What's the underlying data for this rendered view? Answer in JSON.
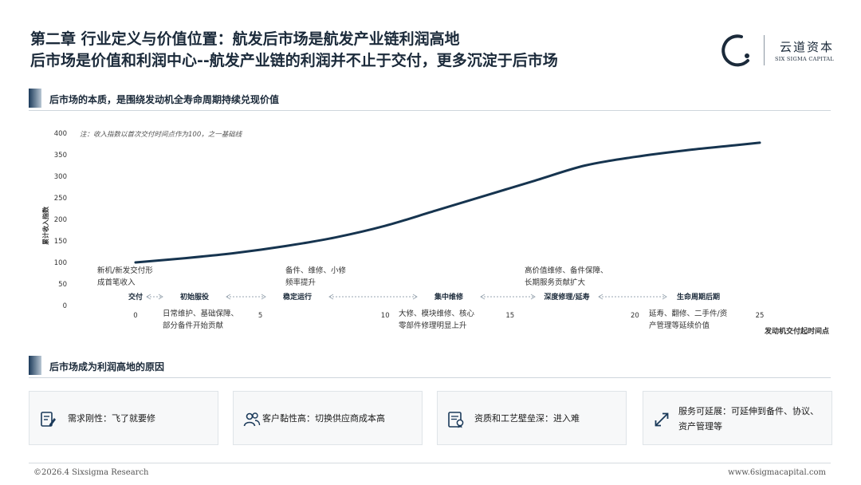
{
  "header": {
    "title_line1": "第二章 行业定义与价值位置：航发后市场是航发产业链利润高地",
    "title_line2": "后市场是价值和利润中心--航发产业链的利润并不止于交付，更多沉淀于后市场",
    "logo_cn": "云道资本",
    "logo_en": "SIX SIGMA CAPITAL"
  },
  "section1": {
    "title": "后市场的本质，是围绕发动机全寿命周期持续兑现价值"
  },
  "section2": {
    "title": "后市场成为利润高地的原因"
  },
  "chart_data": {
    "type": "line",
    "note": "注：收入指数以首次交付时间点作为100，之一基础线",
    "ylabel": "累计收入指数",
    "xlabel": "发动机交付起时间点",
    "ylim": [
      0,
      400
    ],
    "yticks": [
      0,
      50,
      100,
      150,
      200,
      250,
      300,
      350,
      400
    ],
    "xlim": [
      0,
      25
    ],
    "xticks": [
      0,
      5,
      10,
      15,
      20,
      25
    ],
    "grid": false,
    "series": [
      {
        "color": "#16344f",
        "x": [
          0,
          2,
          4,
          6,
          8,
          10,
          12,
          14,
          16,
          18,
          20,
          22,
          24,
          25
        ],
        "y": [
          100,
          110,
          122,
          138,
          158,
          185,
          220,
          255,
          290,
          325,
          345,
          360,
          372,
          378
        ]
      }
    ],
    "phases": [
      {
        "label": "交付",
        "x": 0
      },
      {
        "label": "初始服役",
        "x": 2.5
      },
      {
        "label": "稳定运行",
        "x": 8
      },
      {
        "label": "集中维修",
        "x": 13
      },
      {
        "label": "深度修理/延寿",
        "x": 17.5
      },
      {
        "label": "生命周期后期",
        "x": 22.5
      }
    ],
    "annotations_above": [
      {
        "lines": [
          "新机/新发交付形",
          "成首笔收入"
        ],
        "x": -1.5
      },
      {
        "lines": [
          "备件、维修、小修",
          "频率提升"
        ],
        "x": 6
      },
      {
        "lines": [
          "高价值维修、备件保障、",
          "长期服务贡献扩大"
        ],
        "x": 15.5
      }
    ],
    "annotations_below": [
      {
        "lines": [
          "日常维护、基础保障、",
          "部分备件开始贡献"
        ],
        "x": 1
      },
      {
        "lines": [
          "大修、模块维修、核心",
          "零部件修理明显上升"
        ],
        "x": 10.5
      },
      {
        "lines": [
          "延寿、翻修、二手件/资",
          "产管理等延续价值"
        ],
        "x": 20.5
      }
    ]
  },
  "reasons": [
    {
      "text": "需求刚性：飞了就要修",
      "icon": "document-edit-icon"
    },
    {
      "text": "客户黏性高：切换供应商成本高",
      "icon": "users-icon"
    },
    {
      "text": "资质和工艺壁垒深：进入难",
      "icon": "certificate-icon"
    },
    {
      "text": "服务可延展：可延伸到备件、协议、资产管理等",
      "icon": "expand-arrows-icon"
    }
  ],
  "footer": {
    "copyright": "©2026.4 Sixsigma Research",
    "website": "www.6sigmacapital.com"
  },
  "colors": {
    "primary": "#16344f",
    "accent_gradient_start": "#1b3a5a"
  }
}
